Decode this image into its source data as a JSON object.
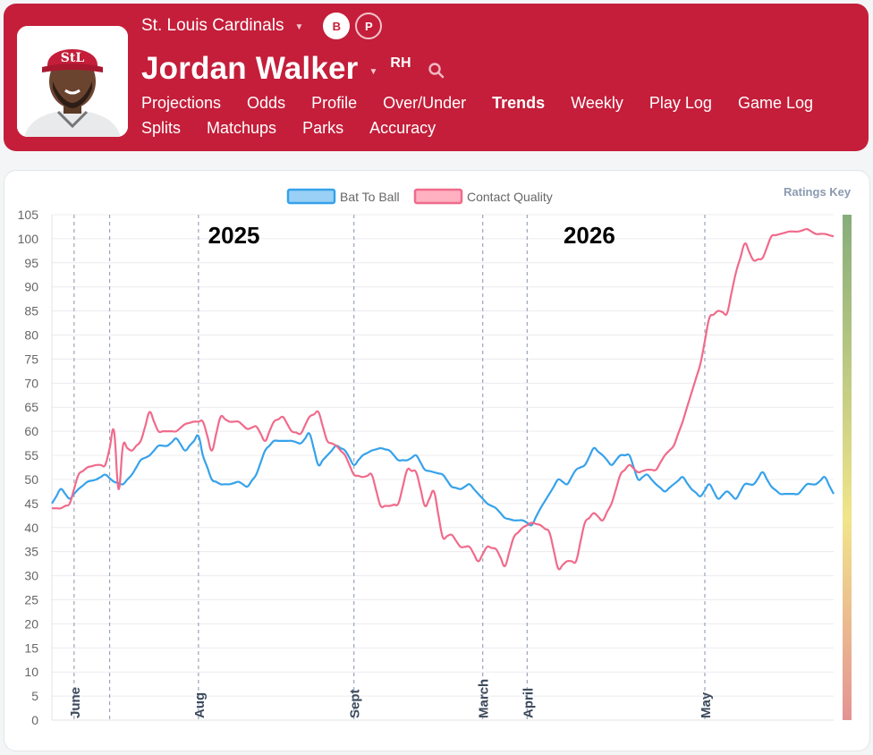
{
  "team": {
    "name": "St. Louis Cardinals"
  },
  "toggles": {
    "batter": "B",
    "pitcher": "P"
  },
  "player": {
    "name": "Jordan Walker",
    "handedness": "RH"
  },
  "nav": {
    "row1": [
      "Projections",
      "Odds",
      "Profile",
      "Over/Under",
      "Trends",
      "Weekly",
      "Play Log",
      "Game Log"
    ],
    "row2": [
      "Splits",
      "Matchups",
      "Parks",
      "Accuracy"
    ],
    "active": "Trends"
  },
  "ratings_key_label": "Ratings Key",
  "colors": {
    "header_bg": "#c41e3a",
    "bat_to_ball": "#36a2eb",
    "contact_quality": "#f06b8b",
    "scale_top": "#86ad7a",
    "scale_mid": "#f1e58b",
    "scale_bottom": "#e49393"
  },
  "chart_data": {
    "type": "line",
    "ylim": [
      0,
      105
    ],
    "yticks": [
      0,
      5,
      10,
      15,
      20,
      25,
      30,
      35,
      40,
      45,
      50,
      55,
      60,
      65,
      70,
      75,
      80,
      85,
      90,
      95,
      100,
      105
    ],
    "season_labels": [
      {
        "text": "2025",
        "at": 41
      },
      {
        "text": "2026",
        "at": 121
      }
    ],
    "month_markers": [
      {
        "label": "June",
        "at": 5
      },
      {
        "label": "",
        "at": 13
      },
      {
        "label": "Aug",
        "at": 33
      },
      {
        "label": "Sept",
        "at": 68
      },
      {
        "label": "March",
        "at": 97
      },
      {
        "label": "April",
        "at": 107
      },
      {
        "label": "May",
        "at": 147
      }
    ],
    "x_count": 177,
    "series": [
      {
        "name": "Bat To Ball",
        "key": [
          [
            0,
            45
          ],
          [
            2,
            48
          ],
          [
            4,
            46
          ],
          [
            6,
            48
          ],
          [
            8,
            49.5
          ],
          [
            10,
            50
          ],
          [
            12,
            51
          ],
          [
            14,
            49.5
          ],
          [
            16,
            49
          ],
          [
            18,
            51
          ],
          [
            20,
            54
          ],
          [
            22,
            55
          ],
          [
            24,
            57
          ],
          [
            26,
            57
          ],
          [
            28,
            58.5
          ],
          [
            30,
            56
          ],
          [
            32,
            58
          ],
          [
            33,
            59
          ],
          [
            34,
            55
          ],
          [
            36,
            50
          ],
          [
            38,
            49
          ],
          [
            40,
            49
          ],
          [
            42,
            49.5
          ],
          [
            44,
            48.5
          ],
          [
            46,
            51
          ],
          [
            48,
            56
          ],
          [
            50,
            58
          ],
          [
            54,
            58
          ],
          [
            56,
            57.5
          ],
          [
            58,
            59.5
          ],
          [
            60,
            53
          ],
          [
            62,
            55
          ],
          [
            64,
            57
          ],
          [
            66,
            56
          ],
          [
            68,
            53
          ],
          [
            70,
            55
          ],
          [
            72,
            56
          ],
          [
            74,
            56.5
          ],
          [
            76,
            56
          ],
          [
            78,
            54
          ],
          [
            80,
            54
          ],
          [
            82,
            55
          ],
          [
            84,
            52
          ],
          [
            88,
            51
          ],
          [
            90,
            48.5
          ],
          [
            92,
            48
          ],
          [
            94,
            49
          ],
          [
            96,
            47
          ],
          [
            98,
            45
          ],
          [
            100,
            44
          ],
          [
            102,
            42
          ],
          [
            104,
            41.5
          ],
          [
            106,
            41.5
          ],
          [
            108,
            40.5
          ],
          [
            110,
            44
          ],
          [
            112,
            47
          ],
          [
            114,
            50
          ],
          [
            116,
            49
          ],
          [
            118,
            52
          ],
          [
            120,
            53
          ],
          [
            122,
            56.5
          ],
          [
            124,
            55
          ],
          [
            126,
            53
          ],
          [
            128,
            55
          ],
          [
            130,
            55
          ],
          [
            132,
            50
          ],
          [
            134,
            51
          ],
          [
            136,
            49
          ],
          [
            138,
            47.5
          ],
          [
            140,
            49
          ],
          [
            142,
            50.5
          ],
          [
            144,
            48
          ],
          [
            146,
            46.5
          ],
          [
            148,
            49
          ],
          [
            150,
            46
          ],
          [
            152,
            47.5
          ],
          [
            154,
            46
          ],
          [
            156,
            49
          ],
          [
            158,
            49
          ],
          [
            160,
            51.5
          ],
          [
            162,
            48.5
          ],
          [
            164,
            47
          ],
          [
            166,
            47
          ],
          [
            168,
            47
          ],
          [
            170,
            49
          ],
          [
            172,
            49
          ],
          [
            174,
            50.5
          ],
          [
            176,
            47
          ]
        ]
      },
      {
        "name": "Contact Quality",
        "key": [
          [
            0,
            44
          ],
          [
            2,
            44
          ],
          [
            4,
            45
          ],
          [
            6,
            51
          ],
          [
            8,
            52.5
          ],
          [
            10,
            53
          ],
          [
            12,
            53
          ],
          [
            14,
            60
          ],
          [
            15,
            48
          ],
          [
            16,
            57
          ],
          [
            18,
            56
          ],
          [
            20,
            58
          ],
          [
            22,
            64
          ],
          [
            24,
            60
          ],
          [
            26,
            60
          ],
          [
            28,
            60
          ],
          [
            30,
            61.5
          ],
          [
            32,
            62
          ],
          [
            34,
            62
          ],
          [
            36,
            56
          ],
          [
            38,
            63
          ],
          [
            40,
            62
          ],
          [
            42,
            62
          ],
          [
            44,
            60.5
          ],
          [
            46,
            61
          ],
          [
            48,
            58
          ],
          [
            50,
            62
          ],
          [
            52,
            63
          ],
          [
            54,
            60
          ],
          [
            56,
            59.5
          ],
          [
            58,
            63
          ],
          [
            60,
            64
          ],
          [
            62,
            58
          ],
          [
            64,
            57
          ],
          [
            66,
            55
          ],
          [
            68,
            51
          ],
          [
            70,
            50.5
          ],
          [
            72,
            51
          ],
          [
            74,
            44.5
          ],
          [
            76,
            44.5
          ],
          [
            78,
            45
          ],
          [
            80,
            52
          ],
          [
            82,
            51.5
          ],
          [
            84,
            44.5
          ],
          [
            86,
            47.5
          ],
          [
            88,
            38
          ],
          [
            90,
            38.5
          ],
          [
            92,
            36
          ],
          [
            94,
            36
          ],
          [
            96,
            33
          ],
          [
            98,
            36
          ],
          [
            100,
            35.5
          ],
          [
            102,
            32
          ],
          [
            104,
            38
          ],
          [
            106,
            40
          ],
          [
            108,
            41
          ],
          [
            110,
            40.5
          ],
          [
            112,
            39
          ],
          [
            114,
            31.5
          ],
          [
            116,
            33
          ],
          [
            118,
            33
          ],
          [
            120,
            41
          ],
          [
            122,
            43
          ],
          [
            124,
            41.5
          ],
          [
            126,
            45
          ],
          [
            128,
            51
          ],
          [
            130,
            53
          ],
          [
            132,
            51.5
          ],
          [
            134,
            52
          ],
          [
            136,
            52
          ],
          [
            138,
            55
          ],
          [
            140,
            57
          ],
          [
            142,
            62
          ],
          [
            144,
            68
          ],
          [
            146,
            74
          ],
          [
            148,
            83.5
          ],
          [
            150,
            85
          ],
          [
            152,
            84.5
          ],
          [
            154,
            93
          ],
          [
            156,
            99
          ],
          [
            158,
            95.5
          ],
          [
            160,
            96
          ],
          [
            162,
            100.5
          ],
          [
            164,
            101
          ],
          [
            166,
            101.5
          ],
          [
            168,
            101.5
          ],
          [
            170,
            102
          ],
          [
            172,
            101
          ],
          [
            174,
            101
          ],
          [
            176,
            100.5
          ]
        ]
      }
    ]
  }
}
